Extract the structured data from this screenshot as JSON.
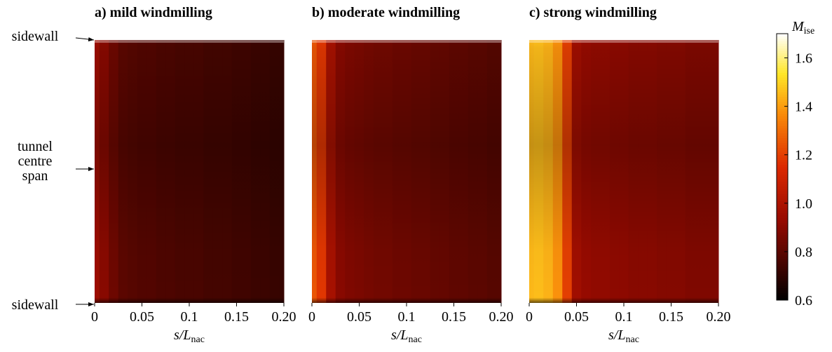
{
  "chart_data": [
    {
      "type": "heatmap",
      "title": "a) mild windmilling",
      "xlabel": "s/L",
      "xlabel_sub": "nac",
      "xlim": [
        0,
        0.2
      ],
      "xticks": [
        0,
        0.05,
        0.1,
        0.15,
        {
          "value": 0.2,
          "label": "0.20"
        }
      ],
      "x": [
        0,
        0.01,
        0.02,
        0.03,
        0.04,
        0.05,
        0.06,
        0.07,
        0.08,
        0.09,
        0.1,
        0.11,
        0.12,
        0.13,
        0.14,
        0.15,
        0.16,
        0.17,
        0.18,
        0.19,
        0.2
      ],
      "values": [
        0.95,
        0.9,
        0.84,
        0.8,
        0.79,
        0.78,
        0.78,
        0.77,
        0.77,
        0.76,
        0.76,
        0.76,
        0.75,
        0.75,
        0.75,
        0.74,
        0.74,
        0.73,
        0.73,
        0.72,
        0.72
      ]
    },
    {
      "type": "heatmap",
      "title": "b) moderate windmilling",
      "xlabel": "s/L",
      "xlabel_sub": "nac",
      "xlim": [
        0,
        0.2
      ],
      "xticks": [
        0,
        0.05,
        0.1,
        0.15,
        {
          "value": 0.2,
          "label": "0.20"
        }
      ],
      "x": [
        0,
        0.01,
        0.02,
        0.03,
        0.04,
        0.05,
        0.06,
        0.07,
        0.08,
        0.09,
        0.1,
        0.11,
        0.12,
        0.13,
        0.14,
        0.15,
        0.16,
        0.17,
        0.18,
        0.19,
        0.2
      ],
      "values": [
        1.25,
        1.18,
        0.98,
        0.9,
        0.88,
        0.87,
        0.86,
        0.85,
        0.85,
        0.84,
        0.84,
        0.83,
        0.83,
        0.82,
        0.82,
        0.81,
        0.81,
        0.8,
        0.8,
        0.79,
        0.79
      ]
    },
    {
      "type": "heatmap",
      "title": "c) strong windmilling",
      "xlabel": "s/L",
      "xlabel_sub": "nac",
      "xlim": [
        0,
        0.2
      ],
      "xticks": [
        0,
        0.05,
        0.1,
        0.15,
        {
          "value": 0.2,
          "label": "0.20"
        }
      ],
      "x": [
        0,
        0.01,
        0.02,
        0.03,
        0.04,
        0.05,
        0.06,
        0.07,
        0.08,
        0.09,
        0.1,
        0.11,
        0.12,
        0.13,
        0.14,
        0.15,
        0.16,
        0.17,
        0.18,
        0.19,
        0.2
      ],
      "values": [
        1.45,
        1.46,
        1.44,
        1.38,
        1.2,
        0.96,
        0.93,
        0.92,
        0.92,
        0.91,
        0.91,
        0.9,
        0.9,
        0.9,
        0.89,
        0.89,
        0.89,
        0.88,
        0.88,
        0.88,
        0.88
      ]
    }
  ],
  "colorbar": {
    "label": "M",
    "label_sub": "ise",
    "lim": [
      0.6,
      1.7
    ],
    "ticks": [
      0.6,
      0.8,
      {
        "value": 1,
        "label": "1.0"
      },
      1.2,
      1.4,
      1.6
    ]
  },
  "annotations": [
    [
      "sidewall"
    ],
    [
      "tunnel",
      "centre",
      "span"
    ],
    [
      "sidewall"
    ]
  ]
}
